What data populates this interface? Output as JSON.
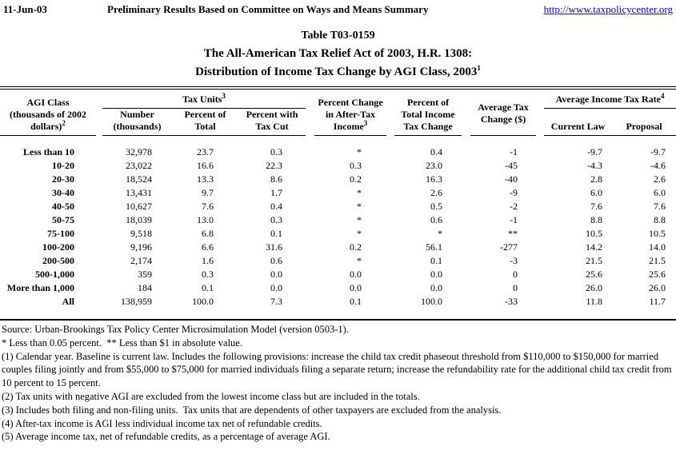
{
  "page_header": {
    "date": "11-Jun-03",
    "subtitle": "Preliminary Results Based on Committee on Ways and Means Summary",
    "url": "http://www.taxpolicycenter.org"
  },
  "title": {
    "line1": "Table T03-0159",
    "line2": "The All-American Tax Relief Act of 2003, H.R. 1308:",
    "line3": "Distribution of Income Tax Change by AGI Class, 2003",
    "line3_sup": "1"
  },
  "table": {
    "groups": {
      "tax_units": {
        "label": "Tax Units",
        "sup": "3"
      },
      "avg_income_tax_rate": {
        "label": "Average Income Tax Rate",
        "sup": "4"
      }
    },
    "headers": {
      "agi_line1": "AGI Class",
      "agi_line2": "(thousands of 2002",
      "agi_line3": "dollars)",
      "agi_sup": "2",
      "number_line1": "Number",
      "number_line2": "(thousands)",
      "pct_total_line1": "Percent of",
      "pct_total_line2": "Total",
      "pct_cut_line1": "Percent with",
      "pct_cut_line2": "Tax Cut",
      "ati_line1": "Percent Change",
      "ati_line2": "in After-Tax",
      "ati_line3": "Income",
      "ati_sup": "3",
      "titc_line1": "Percent of",
      "titc_line2": "Total Income",
      "titc_line3": "Tax Change",
      "avg_line1": "Average Tax",
      "avg_line2": "Change ($)",
      "current_law": "Current Law",
      "proposal": "Proposal"
    },
    "rows": [
      {
        "cells": [
          "Less than 10",
          "32,978",
          "23.7",
          "0.3",
          "*",
          "0.4",
          "-1",
          "-9.7",
          "-9.7"
        ]
      },
      {
        "cells": [
          "10-20",
          "23,022",
          "16.6",
          "22.3",
          "0.3",
          "23.0",
          "-45",
          "-4.3",
          "-4.6"
        ]
      },
      {
        "cells": [
          "20-30",
          "18,524",
          "13.3",
          "8.6",
          "0.2",
          "16.3",
          "-40",
          "2.8",
          "2.6"
        ]
      },
      {
        "cells": [
          "30-40",
          "13,431",
          "9.7",
          "1.7",
          "*",
          "2.6",
          "-9",
          "6.0",
          "6.0"
        ]
      },
      {
        "cells": [
          "40-50",
          "10,627",
          "7.6",
          "0.4",
          "*",
          "0.5",
          "-2",
          "7.6",
          "7.6"
        ]
      },
      {
        "cells": [
          "50-75",
          "18,039",
          "13.0",
          "0.3",
          "*",
          "0.6",
          "-1",
          "8.8",
          "8.8"
        ]
      },
      {
        "cells": [
          "75-100",
          "9,518",
          "6.8",
          "0.1",
          "*",
          "*",
          "**",
          "10.5",
          "10.5"
        ]
      },
      {
        "cells": [
          "100-200",
          "9,196",
          "6.6",
          "31.6",
          "0.2",
          "56.1",
          "-277",
          "14.2",
          "14.0"
        ]
      },
      {
        "cells": [
          "200-500",
          "2,174",
          "1.6",
          "0.6",
          "*",
          "0.1",
          "-3",
          "21.5",
          "21.5"
        ]
      },
      {
        "cells": [
          "500-1,000",
          "359",
          "0.3",
          "0.0",
          "0.0",
          "0.0",
          "0",
          "25.6",
          "25.6"
        ]
      },
      {
        "cells": [
          "More than 1,000",
          "184",
          "0.1",
          "0.0",
          "0.0",
          "0.0",
          "0",
          "26.0",
          "26.0"
        ]
      },
      {
        "cells": [
          "All",
          "138,959",
          "100.0",
          "7.3",
          "0.1",
          "100.0",
          "-33",
          "11.8",
          "11.7"
        ]
      }
    ]
  },
  "footnotes": {
    "source": "Source: Urban-Brookings Tax Policy Center Microsimulation Model (version 0503-1).",
    "legend": "* Less than 0.05 percent.  ** Less than $1 in absolute value.",
    "notes": [
      "(1) Calendar year. Baseline is current law. Includes the following provisions: increase the child tax credit phaseout threshold from $110,000 to $150,000 for married couples filing jointly and from $55,000 to $75,000 for married individuals filing a separate return; increase the refundability rate for the additional child tax credit from 10 percent to 15 percent.",
      "(2) Tax units with negative AGI are excluded from the lowest income class but are included in the totals.",
      "(3) Includes both filing and non-filing units.  Tax units that are dependents of other taxpayers are excluded from the analysis.",
      "(4) After-tax income is AGI less individual income tax net of refundable credits.",
      "(5) Average income tax, net of refundable credits, as a percentage of average AGI."
    ]
  }
}
